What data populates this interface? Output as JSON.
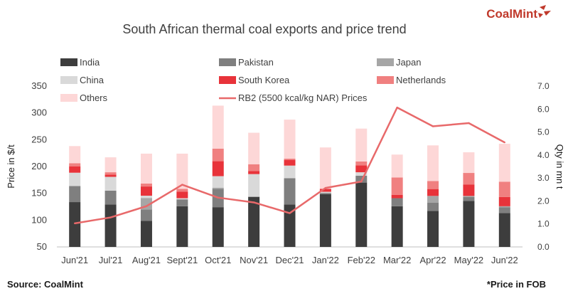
{
  "brand": {
    "name": "CoalMint",
    "accent": "#c0392b"
  },
  "footer": {
    "source": "Source: CoalMint",
    "note": "*Price in FOB"
  },
  "chart_data": {
    "type": "bar",
    "title": "South African thermal coal exports and price trend",
    "xlabel": "",
    "ylabel": "Price in $/t",
    "y2label": "Qty in mn t",
    "categories": [
      "Jun'21",
      "Jul'21",
      "Aug'21",
      "Sept'21",
      "Oct'21",
      "Nov'21",
      "Dec'21",
      "Jan'22",
      "Feb'22",
      "Mar'22",
      "Apr'22",
      "May'22",
      "Jun'22"
    ],
    "ylim": [
      50,
      350
    ],
    "yticks": [
      50,
      100,
      150,
      200,
      250,
      300,
      350
    ],
    "y2lim": [
      0,
      7
    ],
    "y2ticks": [
      "0.0",
      "1.0",
      "2.0",
      "3.0",
      "4.0",
      "5.0",
      "6.0",
      "7.0"
    ],
    "grid": false,
    "legend_position": "top",
    "stacked": true,
    "series": [
      {
        "name": "India",
        "color": "#3d3d3d",
        "values": [
          1.95,
          1.85,
          1.13,
          1.77,
          1.73,
          2.17,
          1.85,
          2.3,
          2.8,
          1.77,
          1.57,
          2.0,
          1.47
        ]
      },
      {
        "name": "Pakistan",
        "color": "#7f7f7f",
        "values": [
          0.7,
          0.6,
          0.5,
          0.3,
          0.8,
          0.0,
          1.13,
          0.05,
          0.3,
          0.35,
          0.35,
          0.17,
          0.25
        ]
      },
      {
        "name": "Japan",
        "color": "#a6a6a6",
        "values": [
          0.0,
          0.0,
          0.5,
          0.0,
          0.05,
          0.03,
          0.03,
          0.0,
          0.0,
          0.0,
          0.3,
          0.05,
          0.05
        ]
      },
      {
        "name": "China",
        "color": "#d9d9d9",
        "values": [
          0.58,
          0.6,
          0.1,
          0.05,
          0.5,
          0.97,
          0.53,
          0.05,
          0.15,
          0.0,
          0.0,
          0.0,
          0.0
        ]
      },
      {
        "name": "South Korea",
        "color": "#e8333a",
        "values": [
          0.28,
          0.1,
          0.4,
          0.28,
          0.65,
          0.13,
          0.25,
          0.13,
          0.3,
          0.15,
          0.3,
          0.5,
          0.4
        ]
      },
      {
        "name": "Netherlands",
        "color": "#f08080",
        "values": [
          0.13,
          0.1,
          0.13,
          0.13,
          0.55,
          0.3,
          0.05,
          0.0,
          0.17,
          0.75,
          0.35,
          0.5,
          0.67
        ]
      },
      {
        "name": "Others",
        "color": "#fdd7d7",
        "values": [
          0.75,
          0.65,
          1.3,
          1.53,
          1.87,
          1.37,
          1.7,
          1.8,
          1.43,
          1.0,
          1.55,
          0.9,
          1.65
        ]
      }
    ],
    "line": {
      "name": "RB2 (5500 kcal/kg NAR) Prices",
      "color": "#e8696a",
      "axis": "left",
      "values": [
        94,
        105,
        126,
        166,
        142,
        133,
        113,
        160,
        172,
        310,
        275,
        281,
        245
      ]
    }
  }
}
